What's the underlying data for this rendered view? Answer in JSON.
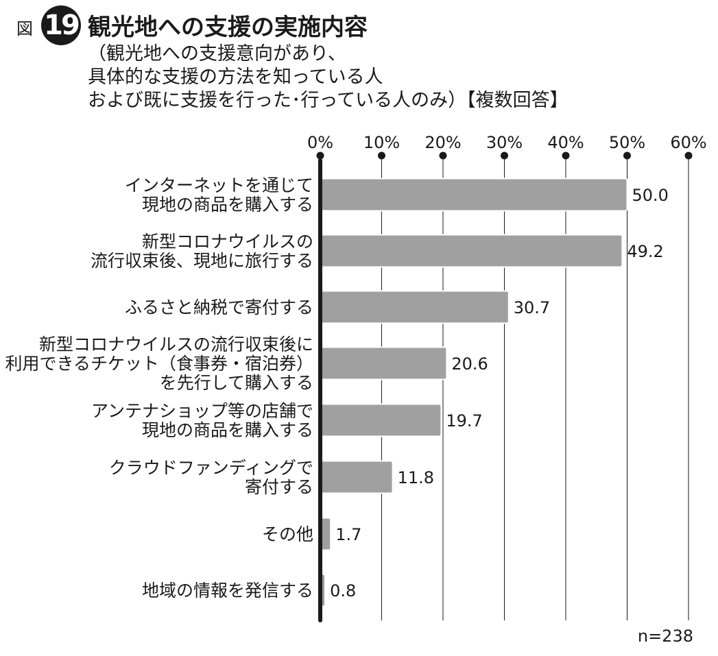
{
  "figure": {
    "label": "図",
    "number": "19",
    "title": "観光地への支援の実施内容",
    "subtitle_lines": [
      "（観光地への支援意向があり、",
      "具体的な支援の方法を知っている人",
      "および既に支援を行った･行っている人のみ）【複数回答】"
    ],
    "sample_size": "n=238"
  },
  "colors": {
    "bar": "#a0a0a0",
    "bar_stroke": "#ffffff",
    "axis": "#1a1a1a",
    "grid": "#1a1a1a"
  },
  "chart_data": {
    "type": "bar",
    "orientation": "horizontal",
    "categories": [
      [
        "インターネットを通じて",
        "現地の商品を購入する"
      ],
      [
        "新型コロナウイルスの",
        "流行収束後、現地に旅行する"
      ],
      [
        "ふるさと納税で寄付する"
      ],
      [
        "新型コロナウイルスの流行収束後に",
        "利用できるチケット（食事券・宿泊券）",
        "を先行して購入する"
      ],
      [
        "アンテナショップ等の店舗で",
        "現地の商品を購入する"
      ],
      [
        "クラウドファンディングで",
        "寄付する"
      ],
      [
        "その他"
      ],
      [
        "地域の情報を発信する"
      ]
    ],
    "values": [
      50.0,
      49.2,
      30.7,
      20.6,
      19.7,
      11.8,
      1.7,
      0.8
    ],
    "value_labels": [
      "50.0",
      "49.2",
      "30.7",
      "20.6",
      "19.7",
      "11.8",
      "1.7",
      "0.8"
    ],
    "x_ticks": [
      0,
      10,
      20,
      30,
      40,
      50,
      60
    ],
    "x_tick_labels": [
      "0%",
      "10%",
      "20%",
      "30%",
      "40%",
      "50%",
      "60%"
    ],
    "xlim": [
      0,
      60
    ],
    "axis_position": "top",
    "grid": true,
    "legend": "none"
  }
}
